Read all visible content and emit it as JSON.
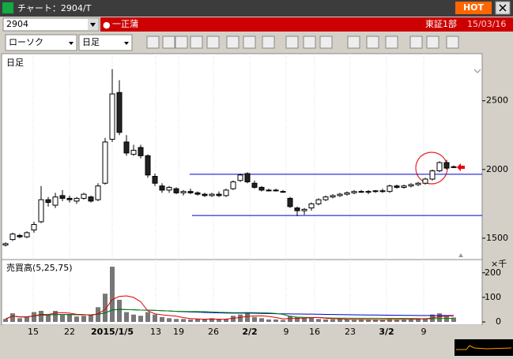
{
  "window": {
    "title": "チャート：2904/T",
    "hot": "HOT"
  },
  "toolbar": {
    "code": "2904",
    "name": "一正蒲",
    "market": "東証1部",
    "date": "15/03/16",
    "chart_kind": "ローソク",
    "period": "日足"
  },
  "chart_data": {
    "type": "candlestick",
    "pane_label": "日足",
    "ohlc": [
      [
        1450,
        1470,
        1440,
        1460
      ],
      [
        1490,
        1540,
        1480,
        1530
      ],
      [
        1520,
        1530,
        1500,
        1510
      ],
      [
        1510,
        1550,
        1500,
        1540
      ],
      [
        1560,
        1620,
        1540,
        1600
      ],
      [
        1620,
        1880,
        1610,
        1780
      ],
      [
        1780,
        1800,
        1730,
        1760
      ],
      [
        1740,
        1830,
        1720,
        1800
      ],
      [
        1810,
        1850,
        1770,
        1790
      ],
      [
        1790,
        1810,
        1760,
        1780
      ],
      [
        1770,
        1800,
        1750,
        1790
      ],
      [
        1790,
        1830,
        1780,
        1820
      ],
      [
        1800,
        1810,
        1760,
        1770
      ],
      [
        1780,
        1900,
        1770,
        1880
      ],
      [
        1900,
        2230,
        1890,
        2200
      ],
      [
        2220,
        2730,
        2200,
        2550
      ],
      [
        2560,
        2650,
        2250,
        2270
      ],
      [
        2200,
        2250,
        2100,
        2120
      ],
      [
        2110,
        2180,
        2100,
        2140
      ],
      [
        2160,
        2180,
        2080,
        2100
      ],
      [
        2100,
        2110,
        1940,
        1960
      ],
      [
        1950,
        1970,
        1880,
        1900
      ],
      [
        1880,
        1900,
        1830,
        1850
      ],
      [
        1850,
        1880,
        1830,
        1870
      ],
      [
        1860,
        1870,
        1820,
        1830
      ],
      [
        1830,
        1850,
        1810,
        1840
      ],
      [
        1840,
        1860,
        1820,
        1830
      ],
      [
        1830,
        1840,
        1810,
        1820
      ],
      [
        1820,
        1830,
        1800,
        1810
      ],
      [
        1810,
        1830,
        1800,
        1820
      ],
      [
        1820,
        1840,
        1800,
        1810
      ],
      [
        1810,
        1860,
        1800,
        1850
      ],
      [
        1860,
        1920,
        1850,
        1910
      ],
      [
        1920,
        1970,
        1910,
        1960
      ],
      [
        1970,
        1980,
        1900,
        1910
      ],
      [
        1900,
        1920,
        1860,
        1870
      ],
      [
        1870,
        1880,
        1840,
        1850
      ],
      [
        1850,
        1860,
        1840,
        1850
      ],
      [
        1850,
        1860,
        1840,
        1845
      ],
      [
        1840,
        1850,
        1830,
        1840
      ],
      [
        1790,
        1800,
        1720,
        1730
      ],
      [
        1720,
        1730,
        1660,
        1700
      ],
      [
        1700,
        1720,
        1670,
        1710
      ],
      [
        1720,
        1760,
        1700,
        1750
      ],
      [
        1750,
        1790,
        1740,
        1780
      ],
      [
        1780,
        1810,
        1770,
        1800
      ],
      [
        1800,
        1820,
        1790,
        1810
      ],
      [
        1810,
        1830,
        1800,
        1820
      ],
      [
        1820,
        1840,
        1810,
        1830
      ],
      [
        1830,
        1850,
        1820,
        1840
      ],
      [
        1840,
        1850,
        1830,
        1835
      ],
      [
        1835,
        1850,
        1820,
        1840
      ],
      [
        1840,
        1850,
        1830,
        1845
      ],
      [
        1845,
        1860,
        1830,
        1840
      ],
      [
        1840,
        1890,
        1830,
        1880
      ],
      [
        1880,
        1890,
        1860,
        1870
      ],
      [
        1870,
        1890,
        1860,
        1880
      ],
      [
        1880,
        1900,
        1870,
        1890
      ],
      [
        1890,
        1910,
        1880,
        1900
      ],
      [
        1900,
        1940,
        1890,
        1930
      ],
      [
        1930,
        2000,
        1920,
        1990
      ],
      [
        1990,
        2060,
        1980,
        2050
      ],
      [
        2050,
        2070,
        2000,
        2010
      ],
      [
        2020,
        2030,
        2010,
        2020
      ]
    ],
    "ylim": [
      1350,
      2820
    ],
    "yticks": [
      1500,
      2000,
      2500
    ],
    "hlines": [
      1965,
      1665
    ],
    "volume_label": "売買高(5,25,75)",
    "volume_unit": "×千",
    "volume": [
      12,
      35,
      15,
      20,
      40,
      45,
      30,
      45,
      28,
      30,
      22,
      25,
      30,
      60,
      115,
      225,
      90,
      40,
      30,
      25,
      40,
      30,
      20,
      15,
      12,
      12,
      10,
      12,
      10,
      15,
      10,
      12,
      25,
      30,
      35,
      20,
      15,
      10,
      10,
      8,
      25,
      20,
      15,
      18,
      12,
      10,
      10,
      12,
      10,
      8,
      10,
      8,
      10,
      8,
      12,
      10,
      10,
      12,
      15,
      15,
      30,
      35,
      25,
      18
    ],
    "y2lim": [
      0,
      225
    ],
    "y2ticks": [
      0,
      100,
      200
    ],
    "xtick_labels": [
      "15",
      "22",
      "2015/1/5",
      "13",
      "19",
      "26",
      "2/2",
      "9",
      "16",
      "23",
      "3/2",
      "9"
    ]
  }
}
